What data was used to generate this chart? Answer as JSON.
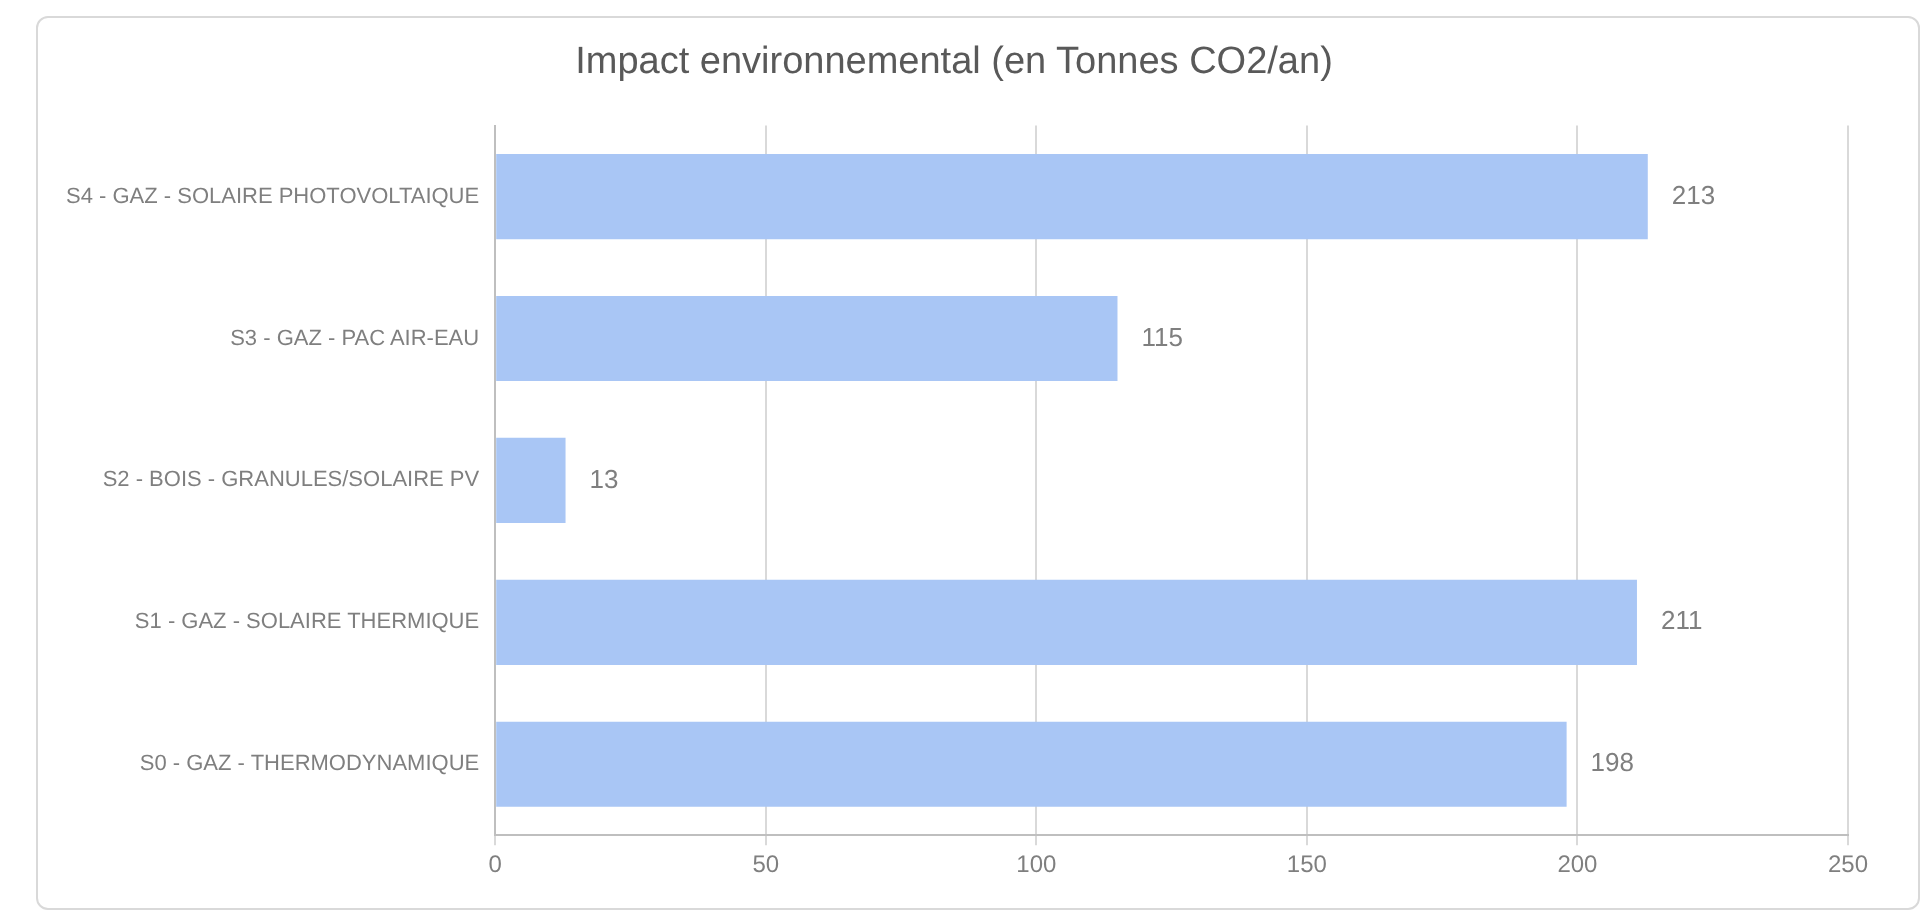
{
  "chart_data": {
    "type": "bar",
    "orientation": "horizontal",
    "title": "Impact environnemental (en Tonnes CO2/an)",
    "categories": [
      "S4 - GAZ - SOLAIRE PHOTOVOLTAIQUE",
      "S3 - GAZ - PAC AIR-EAU",
      "S2 - BOIS - GRANULES/SOLAIRE PV",
      "S1 - GAZ - SOLAIRE THERMIQUE",
      "S0 - GAZ - THERMODYNAMIQUE"
    ],
    "values": [
      213,
      115,
      13,
      211,
      198
    ],
    "color": "#a9c6f5",
    "xlim": [
      0,
      250
    ],
    "xticks": [
      0,
      50,
      100,
      150,
      200,
      250
    ],
    "grid": "x",
    "data_labels": true,
    "legend": false
  }
}
